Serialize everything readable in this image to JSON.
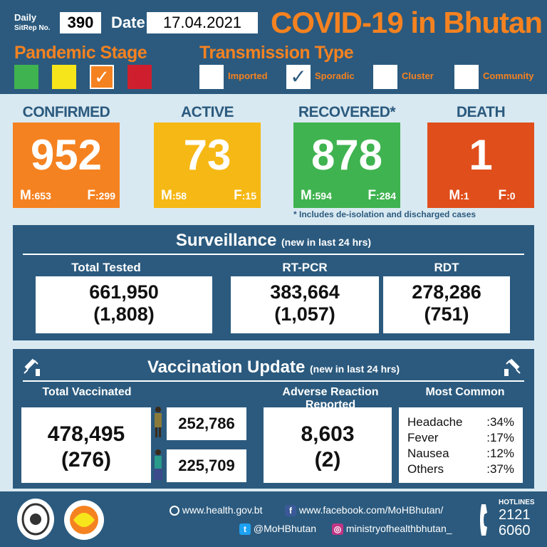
{
  "header": {
    "daily_label": "Daily",
    "sitrep_label": "SitRep No.",
    "sitrep_no": "390",
    "date_label": "Date",
    "date": "17.04.2021",
    "title": "COVID-19 in Bhutan",
    "pandemic_stage_label": "Pandemic Stage",
    "transmission_type_label": "Transmission Type",
    "stage_colors": [
      "#3fb34f",
      "#f7e51b",
      "#f58220",
      "#cf1f2e"
    ],
    "stage_checked_index": 2,
    "transmission_types": [
      "Imported",
      "Sporadic",
      "Cluster",
      "Community"
    ],
    "transmission_checked_index": 1,
    "check_mark": "✓"
  },
  "stats": {
    "confirmed": {
      "label": "CONFIRMED",
      "value": "952",
      "m_label": "M",
      "m": ":653",
      "f_label": "F",
      "f": ":299",
      "color": "#f58220"
    },
    "active": {
      "label": "ACTIVE",
      "value": "73",
      "m_label": "M",
      "m": ":58",
      "f_label": "F",
      "f": ":15",
      "color": "#f6b815"
    },
    "recovered": {
      "label": "RECOVERED*",
      "value": "878",
      "m_label": "M",
      "m": ":594",
      "f_label": "F",
      "f": ":284",
      "color": "#3fb34f"
    },
    "death": {
      "label": "DEATH",
      "value": "1",
      "m_label": "M",
      "m": ":1",
      "f_label": "F",
      "f": ":0",
      "color": "#e04e1b"
    },
    "footnote": "* Includes de-isolation and discharged cases"
  },
  "surveillance": {
    "title": "Surveillance",
    "subtitle": "(new in last 24 hrs)",
    "columns": [
      {
        "label": "Total Tested",
        "value": "661,950",
        "new": "(1,808)"
      },
      {
        "label": "RT-PCR",
        "value": "383,664",
        "new": "(1,057)"
      },
      {
        "label": "RDT",
        "value": "278,286",
        "new": "(751)"
      }
    ]
  },
  "vaccination": {
    "title": "Vaccination Update",
    "subtitle": "(new in last 24 hrs)",
    "total_label": "Total Vaccinated",
    "total": "478,495",
    "total_new": "(276)",
    "male": "252,786",
    "female": "225,709",
    "adverse_label": "Adverse Reaction Reported",
    "adverse": "8,603",
    "adverse_new": "(2)",
    "most_common_label": "Most Common",
    "most_common": [
      {
        "name": "Headache",
        "pct": ":34%"
      },
      {
        "name": "Fever",
        "pct": ":17%"
      },
      {
        "name": "Nausea",
        "pct": ":12%"
      },
      {
        "name": "Others",
        "pct": ":37%"
      }
    ]
  },
  "footer": {
    "website": "www.health.gov.bt",
    "facebook": "www.facebook.com/MoHBhutan/",
    "twitter": "@MoHBhutan",
    "instagram": "ministryofhealthbhutan_",
    "hotlines_label": "HOTLINES",
    "hotline_1": "2121",
    "hotline_2": "6060"
  }
}
